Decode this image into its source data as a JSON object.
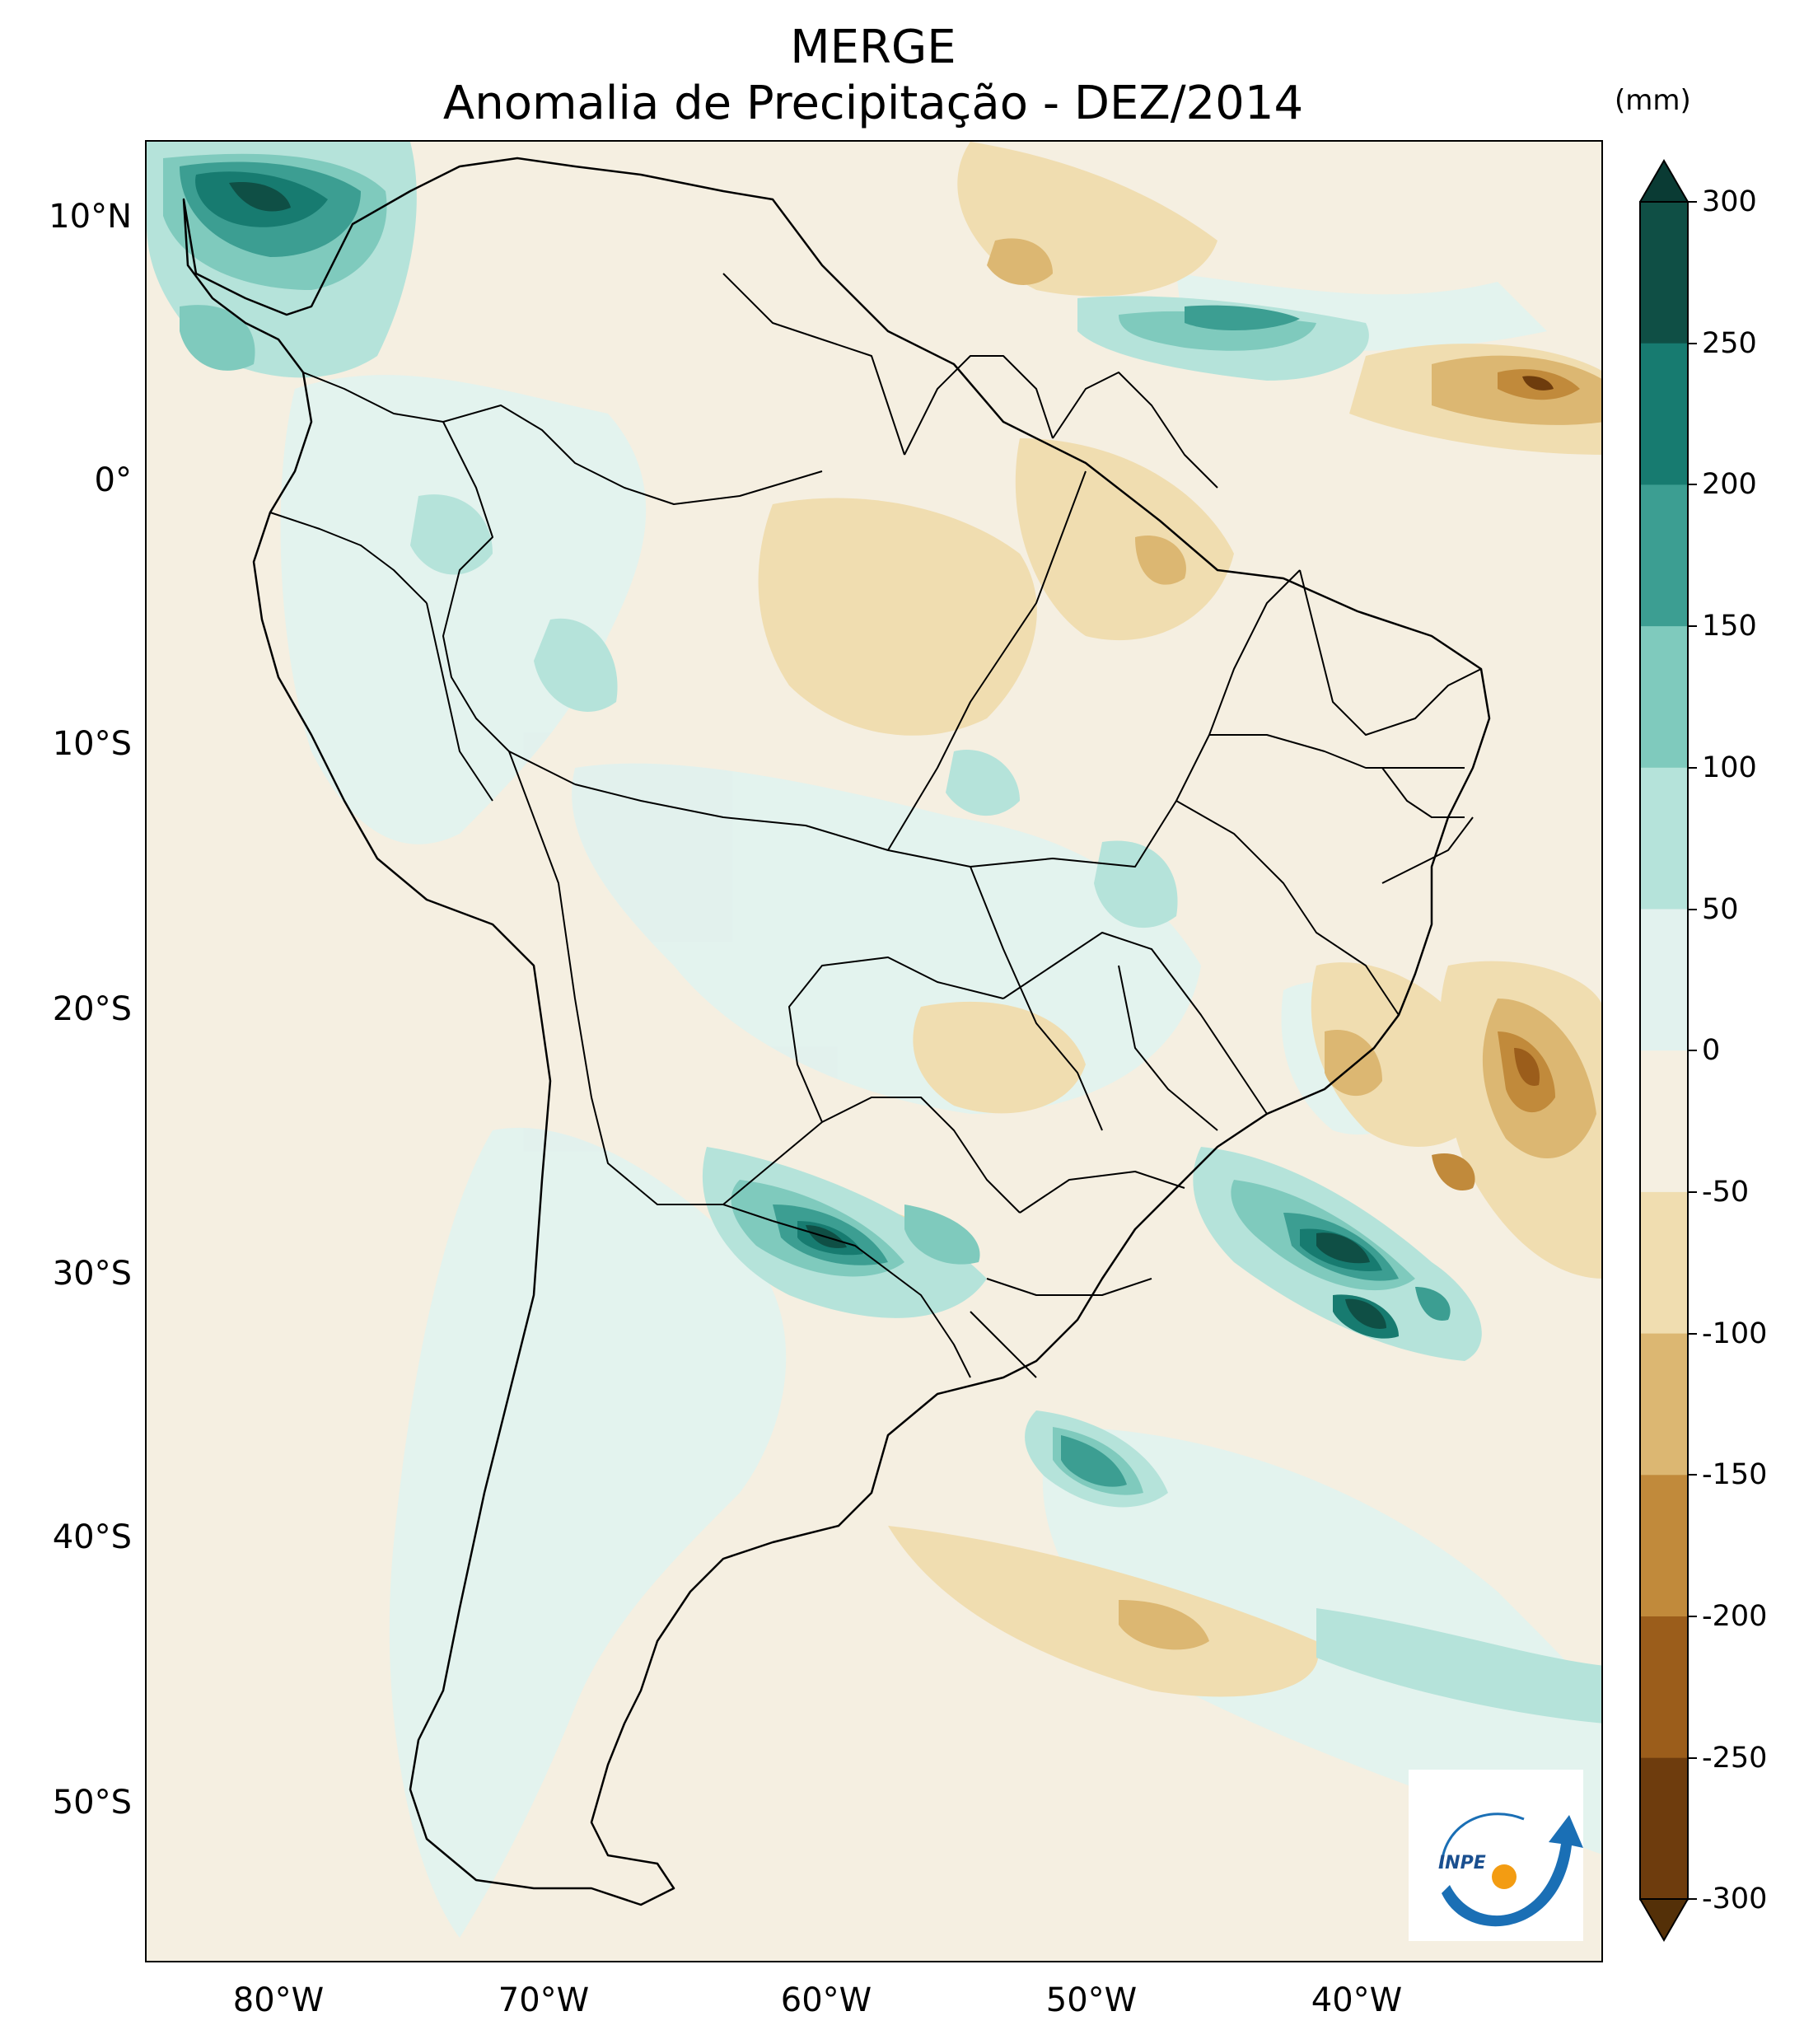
{
  "title": {
    "line1": "MERGE",
    "line2": "Anomalia de Precipitação - DEZ/2014"
  },
  "map": {
    "region": "South America",
    "lat_ticks": [
      "10°N",
      "0°",
      "10°S",
      "20°S",
      "30°S",
      "40°S",
      "50°S"
    ],
    "lon_ticks": [
      "80°W",
      "70°W",
      "60°W",
      "50°W",
      "40°W"
    ]
  },
  "colorbar": {
    "unit": "(mm)",
    "ticks": [
      "300",
      "250",
      "200",
      "150",
      "100",
      "50",
      "0",
      "-50",
      "-100",
      "-150",
      "-200",
      "-250",
      "-300"
    ],
    "bins": [
      {
        "range": "250 – 300",
        "color": "#0f4f45"
      },
      {
        "range": "200 – 250",
        "color": "#177b70"
      },
      {
        "range": "150 – 200",
        "color": "#3c9e92"
      },
      {
        "range": "100 – 150",
        "color": "#7fcabd"
      },
      {
        "range": "50 – 100",
        "color": "#b5e3da"
      },
      {
        "range": "0 – 50",
        "color": "#e2f2ee"
      },
      {
        "range": "-50 – 0",
        "color": "#f5efe1"
      },
      {
        "range": "-100 – -50",
        "color": "#f0ddb0"
      },
      {
        "range": "-150 – -100",
        "color": "#dcb772"
      },
      {
        "range": "-200 – -150",
        "color": "#c18a3b"
      },
      {
        "range": "-250 – -200",
        "color": "#9b5d1b"
      },
      {
        "range": "-300 – -250",
        "color": "#6e3c0d"
      }
    ],
    "extend_top_color": "#0a3b34",
    "extend_bottom_color": "#543008"
  },
  "logo": {
    "text": "INPE"
  },
  "colors": {
    "land_border": "#000000",
    "ocean_background": "#f5efe1"
  }
}
